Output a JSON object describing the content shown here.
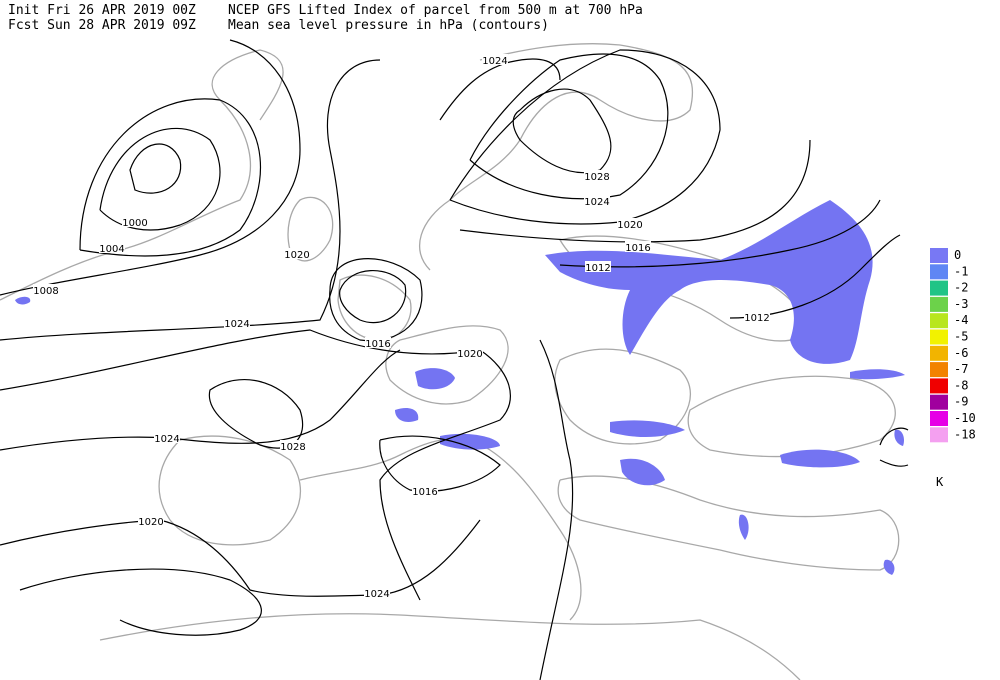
{
  "header": {
    "init": "Init  Fri 26 APR 2019 00Z",
    "fcst": "Fcst Sun 28 APR 2019 09Z",
    "title": "NCEP GFS Lifted Index of parcel from 500 m at 700 hPa",
    "subtitle": "Mean sea level pressure in hPa (contours)"
  },
  "contour_labels": [
    "1024",
    "1028",
    "1024",
    "1020",
    "1016",
    "1012",
    "1012",
    "1000",
    "1004",
    "1008",
    "1020",
    "1024",
    "1016",
    "1020",
    "1024",
    "1028",
    "1016",
    "1020",
    "1024"
  ],
  "legend": {
    "items": [
      {
        "label": "0",
        "color": "#7878f4"
      },
      {
        "label": "-1",
        "color": "#5f86f4"
      },
      {
        "label": "-2",
        "color": "#20c486"
      },
      {
        "label": "-3",
        "color": "#6cd24a"
      },
      {
        "label": "-4",
        "color": "#b8e61e"
      },
      {
        "label": "-5",
        "color": "#f2f200"
      },
      {
        "label": "-6",
        "color": "#f2b400"
      },
      {
        "label": "-7",
        "color": "#f28200"
      },
      {
        "label": "-8",
        "color": "#f00000"
      },
      {
        "label": "-9",
        "color": "#a0009e"
      },
      {
        "label": "-10",
        "color": "#e600e6"
      },
      {
        "label": "-18",
        "color": "#f4a0f0"
      }
    ],
    "unit": "K"
  }
}
